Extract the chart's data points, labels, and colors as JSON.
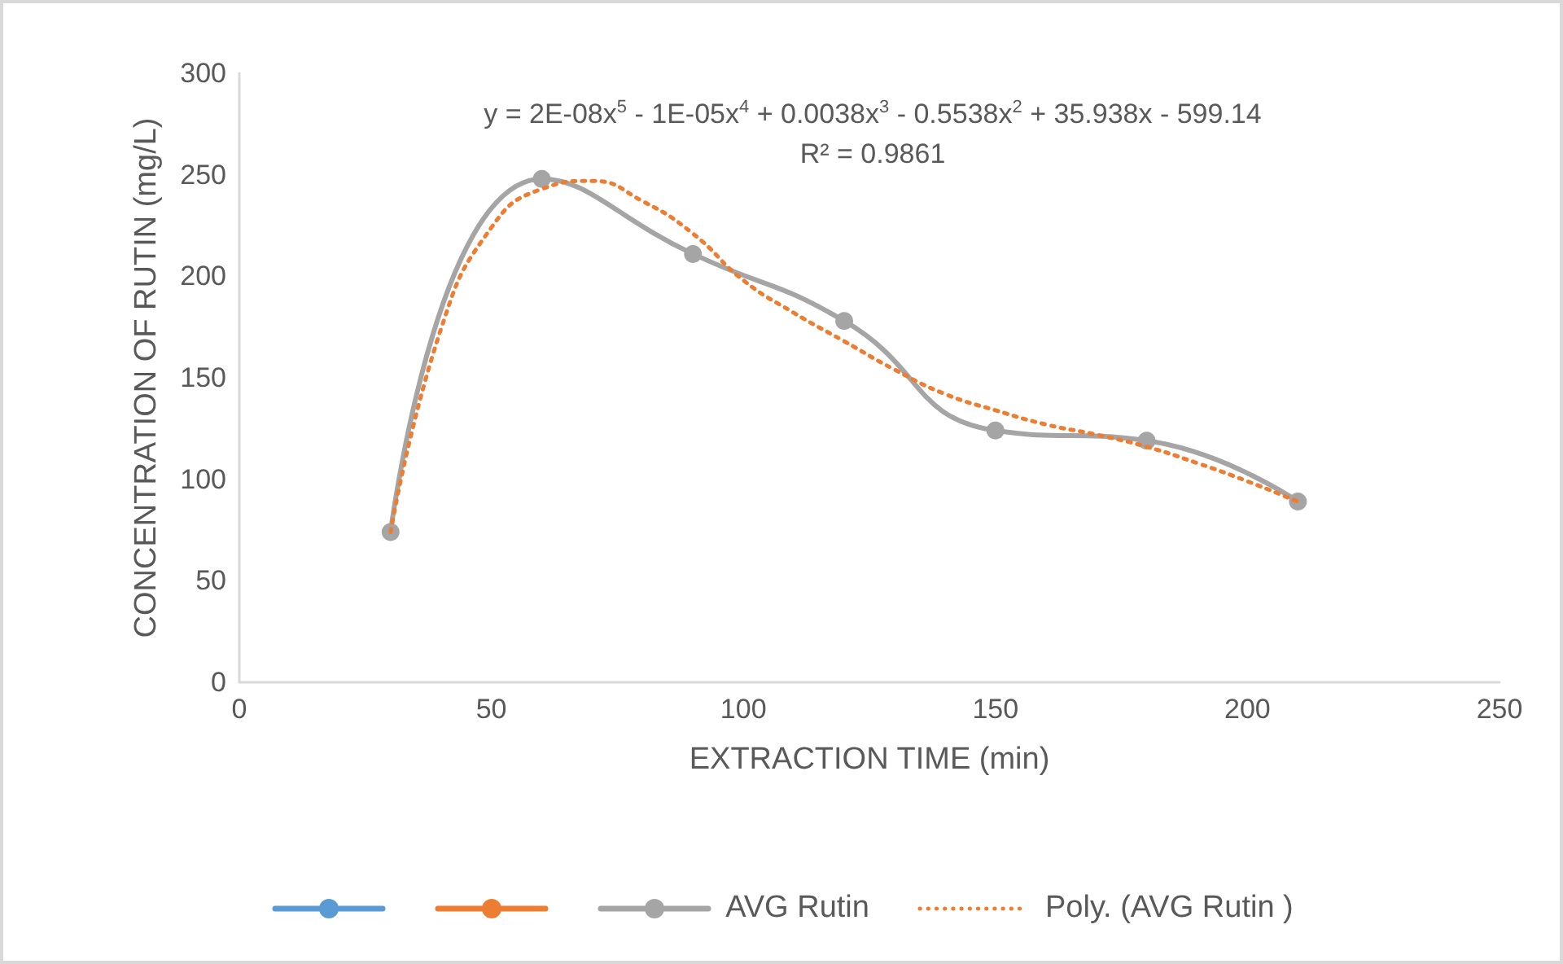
{
  "chart_data": {
    "type": "line",
    "xlabel": "EXTRACTION TIME (min)",
    "ylabel": "CONCENTRATION OF RUTIN (mg/L)",
    "x": [
      30,
      60,
      90,
      120,
      150,
      180,
      210
    ],
    "series": [
      {
        "color": "#5b9bd5",
        "marker": "circle",
        "values": [
          null,
          null,
          null,
          null,
          null,
          null,
          null
        ]
      },
      {
        "color": "#ed7d31",
        "marker": "circle",
        "values": [
          null,
          null,
          null,
          null,
          null,
          null,
          null
        ]
      },
      {
        "name": "AVG Rutin",
        "color": "#a5a5a5",
        "marker": "circle",
        "values": [
          74,
          248,
          211,
          178,
          124,
          119,
          89
        ]
      },
      {
        "name": "Poly. (AVG Rutin )",
        "color": "#ed7d31",
        "marker": "none",
        "line_style": "dotted",
        "x": [
          30,
          40,
          50,
          60,
          70,
          80,
          90,
          100,
          110,
          120,
          130,
          140,
          150,
          160,
          170,
          180,
          190,
          200,
          210
        ],
        "values": [
          74,
          174,
          224,
          243,
          247,
          237,
          221,
          198,
          182,
          168,
          154,
          142,
          134,
          127,
          122,
          116,
          108,
          99,
          89
        ]
      }
    ],
    "annotations": [
      "y = 2E-08x$^{5}$ - 1E-05x$^{4}$ + 0.0038x$^{3}$ - 0.5538x$^{2}$ + 35.938x - 599.14",
      "R² = 0.9861"
    ],
    "xlim": [
      0,
      250
    ],
    "xticks": [
      0,
      50,
      100,
      150,
      200,
      250
    ],
    "ylim": [
      0,
      300
    ],
    "yticks": [
      0,
      50,
      100,
      150,
      200,
      250,
      300
    ],
    "grid": false,
    "legend": "bottom"
  }
}
